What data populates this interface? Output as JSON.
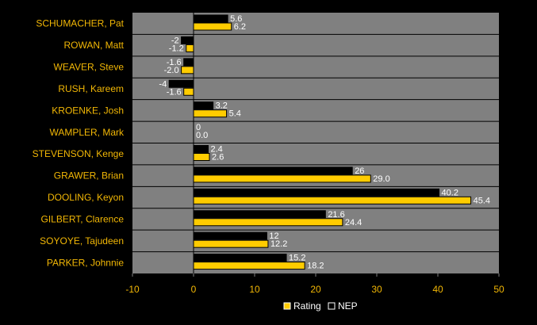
{
  "chart_data": {
    "type": "bar",
    "orientation": "horizontal",
    "categories": [
      "SCHUMACHER, Pat",
      "ROWAN, Matt",
      "WEAVER, Steve",
      "RUSH, Kareem",
      "KROENKE, Josh",
      "WAMPLER, Mark",
      "STEVENSON, Kenge",
      "GRAWER, Brian",
      "DOOLING, Keyon",
      "GILBERT, Clarence",
      "SOYOYE, Tajudeen",
      "PARKER, Johnnie"
    ],
    "series": [
      {
        "name": "NEP",
        "color": "#000000",
        "values": [
          5.6,
          -2,
          -1.6,
          -4,
          3.2,
          0,
          2.4,
          26,
          40.2,
          21.6,
          12,
          15.2
        ],
        "labels": [
          "5.6",
          "-2",
          "-1.6",
          "-4",
          "3.2",
          "0",
          "2.4",
          "26",
          "40.2",
          "21.6",
          "12",
          "15.2"
        ]
      },
      {
        "name": "Rating",
        "color": "#ffcc00",
        "values": [
          6.2,
          -1.2,
          -2.0,
          -1.6,
          5.4,
          0.0,
          2.6,
          29.0,
          45.4,
          24.4,
          12.2,
          18.2
        ],
        "labels": [
          "6.2",
          "-1.2",
          "-2.0",
          "-1.6",
          "5.4",
          "0.0",
          "2.6",
          "29.0",
          "45.4",
          "24.4",
          "12.2",
          "18.2"
        ]
      }
    ],
    "xlim": [
      -10,
      50
    ],
    "xticks": [
      "-10",
      "0",
      "10",
      "20",
      "30",
      "40",
      "50"
    ],
    "grid": true,
    "legend_position": "bottom",
    "legend": [
      {
        "name": "Rating",
        "color": "#ffcc00"
      },
      {
        "name": "NEP",
        "color": "#000000"
      }
    ],
    "plot_background": "#808080",
    "page_background": "#000000",
    "label_color": "#f2b705"
  }
}
